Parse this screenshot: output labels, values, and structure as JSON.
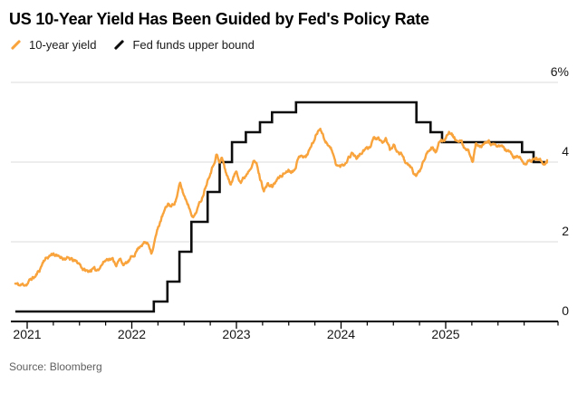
{
  "header": {
    "title": "US 10-Year Yield Has Been Guided by Fed's Policy Rate"
  },
  "legend": {
    "items": [
      {
        "label": "10-year yield",
        "color": "#F8A33C",
        "icon": "slash-icon"
      },
      {
        "label": "Fed funds upper bound",
        "color": "#0d0d0d",
        "icon": "slash-icon"
      }
    ]
  },
  "source": {
    "text": "Source: Bloomberg"
  },
  "colors": {
    "ten_year": "#F8A33C",
    "fed_funds": "#0d0d0d",
    "gridline": "#dbdbdb",
    "axis": "#000000",
    "label": "#161616"
  },
  "chart_data": {
    "type": "line",
    "title": "US 10-Year Yield Has Been Guided by Fed's Policy Rate",
    "xlabel": "",
    "ylabel": "",
    "grid": "horizontal",
    "legend_position": "top-left",
    "x_range": [
      2020.887,
      2025.97
    ],
    "ylim": [
      0,
      6
    ],
    "y_ticks": [
      {
        "label": "6%",
        "value": 6
      },
      {
        "label": "4",
        "value": 4
      },
      {
        "label": "2",
        "value": 2
      },
      {
        "label": "0",
        "value": 0
      }
    ],
    "x_ticks": [
      {
        "label": "2021",
        "value": 2021
      },
      {
        "label": "2022",
        "value": 2022
      },
      {
        "label": "2023",
        "value": 2023
      },
      {
        "label": "2024",
        "value": 2024
      },
      {
        "label": "2025",
        "value": 2025
      }
    ],
    "x_minor_step": 0.25,
    "series": [
      {
        "name": "10-year yield",
        "style": "line",
        "color": "#F8A33C",
        "points": [
          [
            2020.887,
            0.95
          ],
          [
            2020.93,
            0.9
          ],
          [
            2020.97,
            0.93
          ],
          [
            2021.0,
            0.95
          ],
          [
            2021.04,
            1.07
          ],
          [
            2021.08,
            1.13
          ],
          [
            2021.12,
            1.3
          ],
          [
            2021.16,
            1.55
          ],
          [
            2021.2,
            1.62
          ],
          [
            2021.25,
            1.72
          ],
          [
            2021.29,
            1.62
          ],
          [
            2021.33,
            1.62
          ],
          [
            2021.37,
            1.58
          ],
          [
            2021.42,
            1.55
          ],
          [
            2021.46,
            1.5
          ],
          [
            2021.5,
            1.45
          ],
          [
            2021.54,
            1.3
          ],
          [
            2021.58,
            1.25
          ],
          [
            2021.62,
            1.32
          ],
          [
            2021.66,
            1.27
          ],
          [
            2021.7,
            1.4
          ],
          [
            2021.74,
            1.52
          ],
          [
            2021.78,
            1.6
          ],
          [
            2021.82,
            1.55
          ],
          [
            2021.85,
            1.44
          ],
          [
            2021.89,
            1.55
          ],
          [
            2021.93,
            1.42
          ],
          [
            2021.97,
            1.5
          ],
          [
            2022.01,
            1.63
          ],
          [
            2022.05,
            1.8
          ],
          [
            2022.09,
            1.95
          ],
          [
            2022.13,
            1.98
          ],
          [
            2022.16,
            1.93
          ],
          [
            2022.19,
            1.75
          ],
          [
            2022.23,
            2.15
          ],
          [
            2022.27,
            2.5
          ],
          [
            2022.31,
            2.75
          ],
          [
            2022.35,
            2.95
          ],
          [
            2022.38,
            2.88
          ],
          [
            2022.42,
            3.05
          ],
          [
            2022.46,
            3.45
          ],
          [
            2022.5,
            3.15
          ],
          [
            2022.53,
            3.0
          ],
          [
            2022.56,
            2.8
          ],
          [
            2022.59,
            2.62
          ],
          [
            2022.63,
            2.85
          ],
          [
            2022.67,
            3.1
          ],
          [
            2022.71,
            3.45
          ],
          [
            2022.74,
            3.7
          ],
          [
            2022.78,
            3.95
          ],
          [
            2022.81,
            4.22
          ],
          [
            2022.84,
            3.95
          ],
          [
            2022.86,
            4.12
          ],
          [
            2022.9,
            3.75
          ],
          [
            2022.94,
            3.45
          ],
          [
            2022.97,
            3.6
          ],
          [
            2023.0,
            3.78
          ],
          [
            2023.04,
            3.52
          ],
          [
            2023.08,
            3.63
          ],
          [
            2023.12,
            3.82
          ],
          [
            2023.16,
            4.05
          ],
          [
            2023.19,
            3.97
          ],
          [
            2023.23,
            3.55
          ],
          [
            2023.26,
            3.32
          ],
          [
            2023.3,
            3.43
          ],
          [
            2023.34,
            3.38
          ],
          [
            2023.38,
            3.52
          ],
          [
            2023.42,
            3.65
          ],
          [
            2023.46,
            3.72
          ],
          [
            2023.5,
            3.82
          ],
          [
            2023.54,
            3.78
          ],
          [
            2023.58,
            4.02
          ],
          [
            2023.62,
            4.22
          ],
          [
            2023.66,
            4.12
          ],
          [
            2023.7,
            4.32
          ],
          [
            2023.74,
            4.55
          ],
          [
            2023.77,
            4.72
          ],
          [
            2023.8,
            4.9
          ],
          [
            2023.84,
            4.58
          ],
          [
            2023.87,
            4.48
          ],
          [
            2023.91,
            4.3
          ],
          [
            2023.95,
            3.95
          ],
          [
            2023.99,
            3.88
          ],
          [
            2024.03,
            3.95
          ],
          [
            2024.07,
            4.12
          ],
          [
            2024.11,
            4.25
          ],
          [
            2024.15,
            4.1
          ],
          [
            2024.19,
            4.22
          ],
          [
            2024.23,
            4.3
          ],
          [
            2024.27,
            4.35
          ],
          [
            2024.31,
            4.62
          ],
          [
            2024.35,
            4.58
          ],
          [
            2024.39,
            4.45
          ],
          [
            2024.43,
            4.58
          ],
          [
            2024.47,
            4.3
          ],
          [
            2024.51,
            4.42
          ],
          [
            2024.55,
            4.22
          ],
          [
            2024.59,
            4.18
          ],
          [
            2024.63,
            3.92
          ],
          [
            2024.67,
            3.85
          ],
          [
            2024.71,
            3.65
          ],
          [
            2024.75,
            3.75
          ],
          [
            2024.79,
            4.08
          ],
          [
            2024.83,
            4.3
          ],
          [
            2024.87,
            4.42
          ],
          [
            2024.91,
            4.25
          ],
          [
            2024.95,
            4.52
          ],
          [
            2024.99,
            4.58
          ],
          [
            2025.03,
            4.78
          ],
          [
            2025.07,
            4.65
          ],
          [
            2025.11,
            4.52
          ],
          [
            2025.15,
            4.48
          ],
          [
            2025.19,
            4.3
          ],
          [
            2025.23,
            4.22
          ],
          [
            2025.26,
            4.0
          ],
          [
            2025.29,
            4.48
          ],
          [
            2025.33,
            4.32
          ],
          [
            2025.37,
            4.42
          ],
          [
            2025.41,
            4.52
          ],
          [
            2025.45,
            4.42
          ],
          [
            2025.49,
            4.35
          ],
          [
            2025.53,
            4.42
          ],
          [
            2025.57,
            4.32
          ],
          [
            2025.61,
            4.25
          ],
          [
            2025.65,
            4.12
          ],
          [
            2025.69,
            4.14
          ],
          [
            2025.73,
            4.05
          ],
          [
            2025.77,
            3.97
          ],
          [
            2025.81,
            4.0
          ],
          [
            2025.85,
            4.1
          ],
          [
            2025.89,
            4.07
          ],
          [
            2025.93,
            4.0
          ],
          [
            2025.97,
            4.05
          ]
        ]
      },
      {
        "name": "Fed funds upper bound",
        "style": "step",
        "color": "#0d0d0d",
        "end": 2025.955,
        "points": [
          [
            2020.887,
            0.25
          ],
          [
            2022.21,
            0.5
          ],
          [
            2022.34,
            1.0
          ],
          [
            2022.455,
            1.75
          ],
          [
            2022.57,
            2.5
          ],
          [
            2022.725,
            3.25
          ],
          [
            2022.84,
            4.0
          ],
          [
            2022.958,
            4.5
          ],
          [
            2023.09,
            4.75
          ],
          [
            2023.225,
            5.0
          ],
          [
            2023.34,
            5.25
          ],
          [
            2023.57,
            5.5
          ],
          [
            2024.72,
            5.0
          ],
          [
            2024.855,
            4.75
          ],
          [
            2024.965,
            4.5
          ],
          [
            2025.73,
            4.25
          ],
          [
            2025.84,
            4.0
          ]
        ]
      }
    ]
  }
}
